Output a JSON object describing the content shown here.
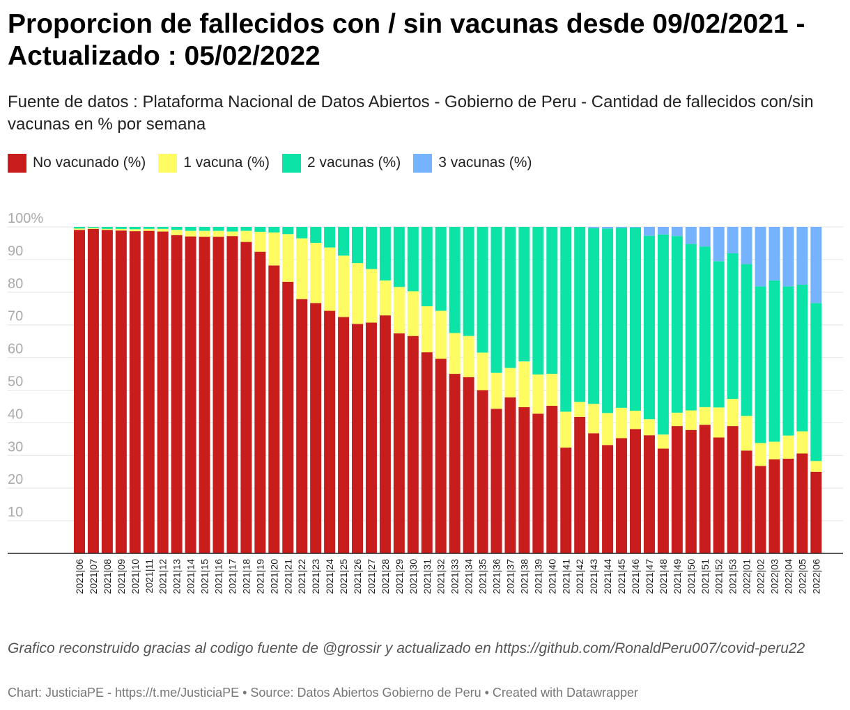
{
  "title": "Proporcion de fallecidos con / sin vacunas desde 09/02/2021 - Actualizado : 05/02/2022",
  "subtitle": "Fuente de datos : Plataforma Nacional de Datos Abiertos - Gobierno de Peru - Cantidad de fallecidos con/sin vacunas en % por semana",
  "legend": [
    {
      "label": "No vacunado (%)",
      "color": "#c71e1d"
    },
    {
      "label": "1 vacuna (%)",
      "color": "#fffc63"
    },
    {
      "label": "2 vacunas (%)",
      "color": "#0ce3a7"
    },
    {
      "label": "3 vacunas (%)",
      "color": "#76b3ff"
    }
  ],
  "chart_data": {
    "type": "bar",
    "stacked": true,
    "ylim": [
      0,
      100
    ],
    "yticks": [
      "10",
      "20",
      "30",
      "40",
      "50",
      "60",
      "70",
      "80",
      "90",
      "100%"
    ],
    "grid": true,
    "legend_placement": "top-left",
    "categories": [
      "2021|06",
      "2021|07",
      "2021|08",
      "2021|09",
      "2021|10",
      "2021|11",
      "2021|12",
      "2021|13",
      "2021|14",
      "2021|15",
      "2021|16",
      "2021|17",
      "2021|18",
      "2021|19",
      "2021|20",
      "2021|21",
      "2021|22",
      "2021|23",
      "2021|24",
      "2021|25",
      "2021|26",
      "2021|27",
      "2021|28",
      "2021|29",
      "2021|30",
      "2021|31",
      "2021|32",
      "2021|33",
      "2021|34",
      "2021|35",
      "2021|36",
      "2021|37",
      "2021|38",
      "2021|39",
      "2021|40",
      "2021|41",
      "2021|42",
      "2021|43",
      "2021|44",
      "2021|45",
      "2021|46",
      "2021|47",
      "2021|48",
      "2021|49",
      "2021|50",
      "2021|51",
      "2021|52",
      "2021|53",
      "2022|01",
      "2022|02",
      "2022|03",
      "2022|04",
      "2022|05",
      "2022|06"
    ],
    "series": [
      {
        "name": "No vacunado (%)",
        "color": "#c71e1d",
        "values": [
          99.1,
          99.4,
          99.1,
          98.9,
          98.7,
          98.8,
          98.6,
          97.5,
          97.1,
          97.0,
          97.0,
          97.2,
          95.4,
          92.4,
          88.2,
          83.2,
          77.9,
          76.7,
          74.3,
          72.4,
          70.3,
          70.7,
          72.9,
          67.4,
          66.6,
          61.6,
          59.6,
          55.0,
          54.0,
          50.0,
          44.3,
          47.8,
          44.8,
          42.8,
          45.2,
          32.4,
          41.8,
          36.8,
          33.2,
          35.3,
          38.1,
          36.2,
          32.1,
          39.0,
          37.8,
          39.4,
          35.5,
          39.0,
          31.5,
          26.8,
          28.8,
          29.0,
          30.6,
          25.0
        ]
      },
      {
        "name": "1 vacuna (%)",
        "color": "#fffc63",
        "values": [
          0.4,
          0.3,
          0.3,
          0.5,
          0.6,
          0.6,
          0.8,
          1.6,
          1.7,
          1.8,
          1.8,
          1.4,
          3.4,
          6.1,
          10.1,
          14.6,
          18.6,
          18.4,
          19.4,
          18.8,
          18.6,
          16.4,
          10.7,
          14.2,
          13.7,
          14.1,
          14.7,
          12.5,
          12.6,
          11.5,
          11.0,
          9.0,
          14.0,
          12.0,
          9.8,
          11.0,
          4.6,
          9.0,
          9.8,
          9.3,
          5.6,
          4.9,
          4.3,
          4.1,
          6.0,
          5.4,
          9.2,
          8.3,
          10.6,
          7.0,
          5.4,
          7.1,
          6.8,
          3.3
        ]
      },
      {
        "name": "2 vacunas (%)",
        "color": "#0ce3a7",
        "values": [
          0.5,
          0.3,
          0.6,
          0.6,
          0.7,
          0.6,
          0.6,
          0.9,
          1.2,
          1.2,
          1.2,
          1.4,
          1.2,
          1.5,
          1.7,
          2.2,
          3.5,
          4.9,
          6.3,
          8.8,
          11.1,
          12.9,
          16.4,
          18.4,
          19.7,
          24.3,
          25.7,
          32.5,
          33.4,
          38.5,
          44.7,
          43.2,
          41.2,
          45.2,
          45.0,
          56.6,
          53.6,
          53.8,
          56.5,
          55.1,
          56.1,
          56.2,
          61.3,
          54.1,
          51.0,
          49.2,
          44.8,
          44.6,
          46.5,
          48.0,
          49.4,
          45.7,
          44.9,
          48.4
        ]
      },
      {
        "name": "3 vacunas (%)",
        "color": "#76b3ff",
        "values": [
          0,
          0,
          0,
          0,
          0,
          0,
          0,
          0,
          0,
          0,
          0,
          0,
          0,
          0,
          0,
          0,
          0,
          0,
          0,
          0,
          0,
          0,
          0,
          0,
          0,
          0,
          0,
          0,
          0,
          0,
          0,
          0,
          0,
          0,
          0,
          0,
          0,
          0.4,
          0.5,
          0.3,
          0.2,
          2.7,
          2.3,
          2.8,
          5.2,
          6.0,
          10.5,
          8.1,
          11.4,
          18.2,
          16.4,
          18.2,
          17.7,
          23.3
        ]
      }
    ]
  },
  "notes": "Grafico reconstruido gracias al codigo fuente de @grossir y actualizado en https://github.com/RonaldPeru007/covid-peru22",
  "footer": "Chart: JusticiaPE - https://t.me/JusticiaPE • Source: Datos Abiertos Gobierno de Peru • Created with Datawrapper"
}
